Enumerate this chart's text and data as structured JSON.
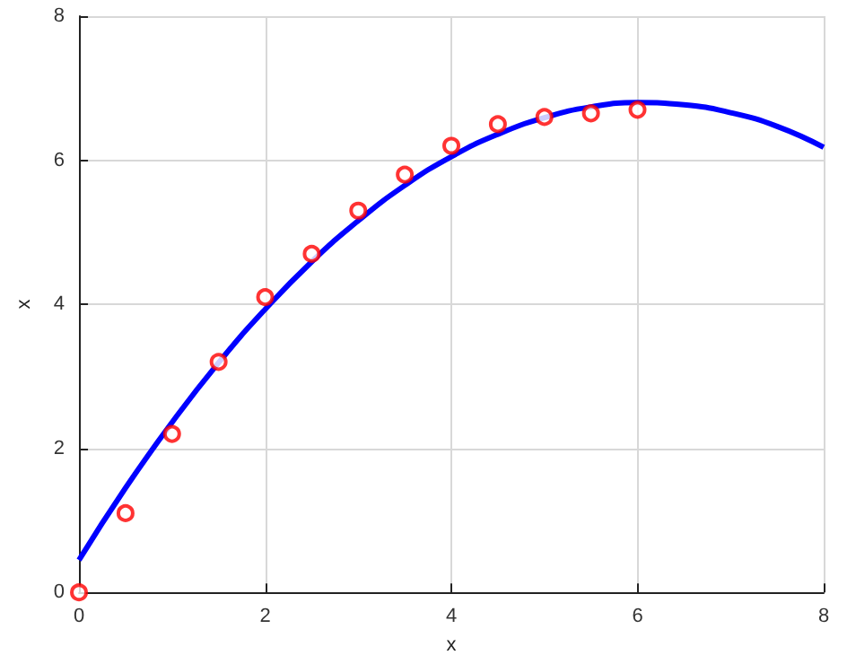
{
  "chart_data": {
    "type": "scatter",
    "xlabel": "x",
    "ylabel": "x",
    "xlim": [
      0,
      8
    ],
    "ylim": [
      0,
      8
    ],
    "xticks": [
      0,
      2,
      4,
      6,
      8
    ],
    "yticks": [
      0,
      2,
      4,
      6,
      8
    ],
    "grid": true,
    "marker": "circle",
    "series": [
      {
        "color": "#ff0000",
        "x": [
          0,
          0.5,
          1,
          1.5,
          2,
          2.5,
          3,
          3.5,
          4,
          4.5,
          5,
          5.5,
          6
        ],
        "values": [
          0,
          1.1,
          2.2,
          3.2,
          4.1,
          4.7,
          5.3,
          5.8,
          6.2,
          6.5,
          6.6,
          6.65,
          6.7
        ]
      },
      {
        "type": "line",
        "color": "#0000ff",
        "marker": "none",
        "line_style": "solid",
        "x": [
          0,
          0.5,
          1,
          1.5,
          2,
          2.5,
          3,
          3.5,
          4,
          4.5,
          5,
          5.5,
          6,
          6.5,
          7,
          7.5,
          8
        ],
        "values": [
          0.45,
          1.45,
          2.36,
          3.19,
          3.93,
          4.59,
          5.16,
          5.65,
          6.05,
          6.36,
          6.59,
          6.74,
          6.8,
          6.77,
          6.66,
          6.47,
          6.18
        ]
      }
    ]
  }
}
